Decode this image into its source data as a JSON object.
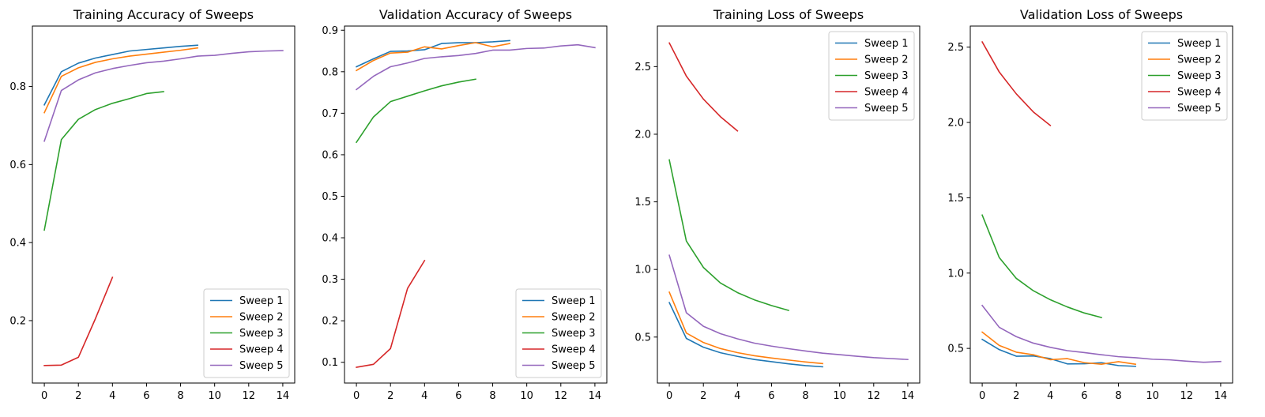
{
  "chart_data": [
    {
      "type": "line",
      "title": "Training Accuracy of Sweeps",
      "xlabel": "",
      "ylabel": "",
      "xlim": [
        -0.7,
        14.7
      ],
      "ylim": [
        0.04,
        0.955
      ],
      "xticks": [
        0,
        2,
        4,
        6,
        8,
        10,
        12,
        14
      ],
      "yticks": [
        0.2,
        0.4,
        0.6,
        0.8
      ],
      "legend": "lower-right",
      "grid": false,
      "series": [
        {
          "name": "Sweep 1",
          "color": "#1f77b4",
          "x": [
            0,
            1,
            2,
            3,
            4,
            5,
            6,
            7,
            8,
            9
          ],
          "y": [
            0.753,
            0.838,
            0.86,
            0.873,
            0.882,
            0.891,
            0.895,
            0.899,
            0.903,
            0.906
          ]
        },
        {
          "name": "Sweep 2",
          "color": "#ff7f0e",
          "x": [
            0,
            1,
            2,
            3,
            4,
            5,
            6,
            7,
            8,
            9
          ],
          "y": [
            0.733,
            0.826,
            0.848,
            0.862,
            0.871,
            0.878,
            0.883,
            0.888,
            0.893,
            0.899
          ]
        },
        {
          "name": "Sweep 3",
          "color": "#2ca02c",
          "x": [
            0,
            1,
            2,
            3,
            4,
            5,
            6,
            7
          ],
          "y": [
            0.432,
            0.664,
            0.716,
            0.741,
            0.757,
            0.769,
            0.782,
            0.787
          ]
        },
        {
          "name": "Sweep 4",
          "color": "#d62728",
          "x": [
            0,
            1,
            2,
            3,
            4
          ],
          "y": [
            0.085,
            0.086,
            0.106,
            0.205,
            0.311
          ]
        },
        {
          "name": "Sweep 5",
          "color": "#9467bd",
          "x": [
            0,
            1,
            2,
            3,
            4,
            5,
            6,
            7,
            8,
            9,
            10,
            11,
            12,
            13,
            14
          ],
          "y": [
            0.66,
            0.79,
            0.817,
            0.835,
            0.846,
            0.854,
            0.861,
            0.865,
            0.871,
            0.878,
            0.88,
            0.885,
            0.889,
            0.891,
            0.892
          ]
        }
      ]
    },
    {
      "type": "line",
      "title": "Validation Accuracy of Sweeps",
      "xlabel": "",
      "ylabel": "",
      "xlim": [
        -0.7,
        14.7
      ],
      "ylim": [
        0.05,
        0.91
      ],
      "xticks": [
        0,
        2,
        4,
        6,
        8,
        10,
        12,
        14
      ],
      "yticks": [
        0.1,
        0.2,
        0.3,
        0.4,
        0.5,
        0.6,
        0.7,
        0.8,
        0.9
      ],
      "legend": "lower-right",
      "grid": false,
      "series": [
        {
          "name": "Sweep 1",
          "color": "#1f77b4",
          "x": [
            0,
            1,
            2,
            3,
            4,
            5,
            6,
            7,
            8,
            9
          ],
          "y": [
            0.812,
            0.831,
            0.849,
            0.85,
            0.853,
            0.868,
            0.87,
            0.87,
            0.872,
            0.875
          ]
        },
        {
          "name": "Sweep 2",
          "color": "#ff7f0e",
          "x": [
            0,
            1,
            2,
            3,
            4,
            5,
            6,
            7,
            8,
            9
          ],
          "y": [
            0.803,
            0.827,
            0.845,
            0.847,
            0.86,
            0.855,
            0.863,
            0.87,
            0.86,
            0.868
          ]
        },
        {
          "name": "Sweep 3",
          "color": "#2ca02c",
          "x": [
            0,
            1,
            2,
            3,
            4,
            5,
            6,
            7
          ],
          "y": [
            0.63,
            0.691,
            0.728,
            0.741,
            0.754,
            0.766,
            0.775,
            0.782
          ]
        },
        {
          "name": "Sweep 4",
          "color": "#d62728",
          "x": [
            0,
            1,
            2,
            3,
            4
          ],
          "y": [
            0.088,
            0.095,
            0.133,
            0.278,
            0.345
          ]
        },
        {
          "name": "Sweep 5",
          "color": "#9467bd",
          "x": [
            0,
            1,
            2,
            3,
            4,
            5,
            6,
            7,
            8,
            9,
            10,
            11,
            12,
            13,
            14
          ],
          "y": [
            0.757,
            0.789,
            0.812,
            0.821,
            0.832,
            0.836,
            0.839,
            0.844,
            0.852,
            0.852,
            0.856,
            0.857,
            0.862,
            0.865,
            0.858
          ]
        }
      ]
    },
    {
      "type": "line",
      "title": "Training Loss of Sweeps",
      "xlabel": "",
      "ylabel": "",
      "xlim": [
        -0.7,
        14.7
      ],
      "ylim": [
        0.16,
        2.8
      ],
      "xticks": [
        0,
        2,
        4,
        6,
        8,
        10,
        12,
        14
      ],
      "yticks": [
        0.5,
        1.0,
        1.5,
        2.0,
        2.5
      ],
      "legend": "upper-right",
      "grid": false,
      "series": [
        {
          "name": "Sweep 1",
          "color": "#1f77b4",
          "x": [
            0,
            1,
            2,
            3,
            4,
            5,
            6,
            7,
            8,
            9
          ],
          "y": [
            0.755,
            0.49,
            0.425,
            0.384,
            0.357,
            0.334,
            0.318,
            0.302,
            0.289,
            0.28
          ]
        },
        {
          "name": "Sweep 2",
          "color": "#ff7f0e",
          "x": [
            0,
            1,
            2,
            3,
            4,
            5,
            6,
            7,
            8,
            9
          ],
          "y": [
            0.832,
            0.53,
            0.46,
            0.415,
            0.385,
            0.362,
            0.345,
            0.33,
            0.316,
            0.304
          ]
        },
        {
          "name": "Sweep 3",
          "color": "#2ca02c",
          "x": [
            0,
            1,
            2,
            3,
            4,
            5,
            6,
            7
          ],
          "y": [
            1.81,
            1.21,
            1.015,
            0.9,
            0.829,
            0.775,
            0.733,
            0.697
          ]
        },
        {
          "name": "Sweep 4",
          "color": "#d62728",
          "x": [
            0,
            1,
            2,
            3,
            4
          ],
          "y": [
            2.675,
            2.43,
            2.26,
            2.13,
            2.025
          ]
        },
        {
          "name": "Sweep 5",
          "color": "#9467bd",
          "x": [
            0,
            1,
            2,
            3,
            4,
            5,
            6,
            7,
            8,
            9,
            10,
            11,
            12,
            13,
            14
          ],
          "y": [
            1.105,
            0.68,
            0.58,
            0.525,
            0.487,
            0.455,
            0.433,
            0.414,
            0.397,
            0.381,
            0.37,
            0.358,
            0.348,
            0.341,
            0.334
          ]
        }
      ]
    },
    {
      "type": "line",
      "title": "Validation Loss of Sweeps",
      "xlabel": "",
      "ylabel": "",
      "xlim": [
        -0.7,
        14.7
      ],
      "ylim": [
        0.27,
        2.64
      ],
      "xticks": [
        0,
        2,
        4,
        6,
        8,
        10,
        12,
        14
      ],
      "yticks": [
        0.5,
        1.0,
        1.5,
        2.0,
        2.5
      ],
      "legend": "upper-right",
      "grid": false,
      "series": [
        {
          "name": "Sweep 1",
          "color": "#1f77b4",
          "x": [
            0,
            1,
            2,
            3,
            4,
            5,
            6,
            7,
            8,
            9
          ],
          "y": [
            0.56,
            0.492,
            0.448,
            0.45,
            0.432,
            0.397,
            0.398,
            0.405,
            0.386,
            0.381
          ]
        },
        {
          "name": "Sweep 2",
          "color": "#ff7f0e",
          "x": [
            0,
            1,
            2,
            3,
            4,
            5,
            6,
            7,
            8,
            9
          ],
          "y": [
            0.608,
            0.52,
            0.475,
            0.458,
            0.425,
            0.432,
            0.405,
            0.395,
            0.412,
            0.395
          ]
        },
        {
          "name": "Sweep 3",
          "color": "#2ca02c",
          "x": [
            0,
            1,
            2,
            3,
            4,
            5,
            6,
            7
          ],
          "y": [
            1.385,
            1.103,
            0.965,
            0.883,
            0.823,
            0.775,
            0.735,
            0.705
          ]
        },
        {
          "name": "Sweep 4",
          "color": "#d62728",
          "x": [
            0,
            1,
            2,
            3,
            4
          ],
          "y": [
            2.535,
            2.335,
            2.19,
            2.07,
            1.98
          ]
        },
        {
          "name": "Sweep 5",
          "color": "#9467bd",
          "x": [
            0,
            1,
            2,
            3,
            4,
            5,
            6,
            7,
            8,
            9,
            10,
            11,
            12,
            13,
            14
          ],
          "y": [
            0.785,
            0.64,
            0.578,
            0.535,
            0.507,
            0.485,
            0.472,
            0.458,
            0.445,
            0.438,
            0.428,
            0.424,
            0.415,
            0.408,
            0.413
          ]
        }
      ]
    }
  ]
}
